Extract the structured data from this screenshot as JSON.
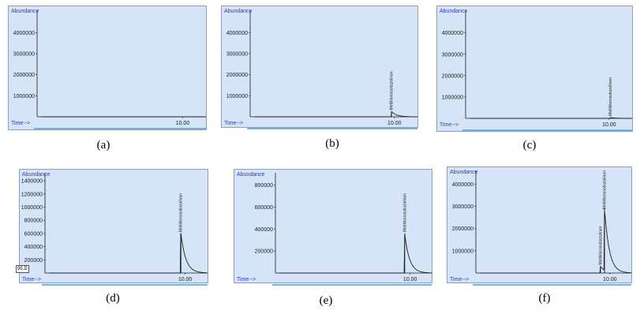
{
  "captions": [
    "(a)",
    "(b)",
    "(c)",
    "(d)",
    "(e)",
    "(f)"
  ],
  "axis": {
    "y_title": "Abundance",
    "x_title": "Time-->",
    "x_tick": "10.00"
  },
  "panel_d_side_label": "95.D",
  "peak_label": "Metilkloroisotiazolinon",
  "colors": {
    "plot_bg": "#d6e4f7",
    "trace": "#202020",
    "axis_title": "#2a3fb0",
    "scrollbar": "#6fb7e0"
  },
  "chart_data": [
    {
      "type": "line",
      "panel": "a",
      "x_axis": {
        "range": [
          0,
          11.6
        ],
        "ticks": [
          10.0
        ],
        "tick_labels": [
          "10.00"
        ]
      },
      "y_axis": {
        "range": [
          0,
          4800000
        ],
        "ticks": [
          1000000,
          2000000,
          3000000,
          4000000
        ],
        "tick_labels": [
          "1000000",
          "2000000",
          "3000000",
          "4000000"
        ]
      },
      "peaks": []
    },
    {
      "type": "line",
      "panel": "b",
      "x_axis": {
        "range": [
          0,
          11.6
        ],
        "ticks": [
          10.0
        ],
        "tick_labels": [
          "10.00"
        ]
      },
      "y_axis": {
        "range": [
          0,
          4800000
        ],
        "ticks": [
          1000000,
          2000000,
          3000000,
          4000000
        ],
        "tick_labels": [
          "1000000",
          "2000000",
          "3000000",
          "4000000"
        ]
      },
      "peaks": [
        {
          "time": 9.8,
          "abundance": 250000,
          "label": "Metilkloroisotiazolinon"
        }
      ]
    },
    {
      "type": "line",
      "panel": "c",
      "x_axis": {
        "range": [
          0,
          11.6
        ],
        "ticks": [
          10.0
        ],
        "tick_labels": [
          "10.00"
        ]
      },
      "y_axis": {
        "range": [
          0,
          4800000
        ],
        "ticks": [
          1000000,
          2000000,
          3000000,
          4000000
        ],
        "tick_labels": [
          "1000000",
          "2000000",
          "3000000",
          "4000000"
        ]
      },
      "peaks": [
        {
          "time": 10.1,
          "abundance": 40000,
          "label": "Metilkloroisotiazolinon"
        }
      ]
    },
    {
      "type": "line",
      "panel": "d",
      "x_axis": {
        "range": [
          0,
          11.6
        ],
        "ticks": [
          10.0
        ],
        "tick_labels": [
          "10.00"
        ]
      },
      "y_axis": {
        "range": [
          0,
          1450000
        ],
        "ticks": [
          200000,
          400000,
          600000,
          800000,
          1000000,
          1200000,
          1400000
        ],
        "tick_labels": [
          "200000",
          "400000",
          "600000",
          "800000",
          "1000000",
          "1200000",
          "1400000"
        ]
      },
      "peaks": [
        {
          "time": 9.7,
          "abundance": 600000,
          "label": "Metilkloroisotiazolinon"
        }
      ]
    },
    {
      "type": "line",
      "panel": "e",
      "x_axis": {
        "range": [
          0,
          11.6
        ],
        "ticks": [
          10.0
        ],
        "tick_labels": [
          "10.00"
        ]
      },
      "y_axis": {
        "range": [
          0,
          870000
        ],
        "ticks": [
          200000,
          400000,
          600000,
          800000
        ],
        "tick_labels": [
          "200000",
          "400000",
          "600000",
          "800000"
        ]
      },
      "peaks": [
        {
          "time": 9.6,
          "abundance": 360000,
          "label": "Metilkloroisotiazolinon"
        }
      ]
    },
    {
      "type": "line",
      "panel": "f",
      "x_axis": {
        "range": [
          0,
          11.6
        ],
        "ticks": [
          10.0
        ],
        "tick_labels": [
          "10.00"
        ]
      },
      "y_axis": {
        "range": [
          0,
          4400000
        ],
        "ticks": [
          1000000,
          2000000,
          3000000,
          4000000
        ],
        "tick_labels": [
          "1000000",
          "2000000",
          "3000000",
          "4000000"
        ]
      },
      "peaks": [
        {
          "time": 9.3,
          "abundance": 300000,
          "label": "Metilkloroisotiazolinon"
        },
        {
          "time": 9.6,
          "abundance": 2800000,
          "label": "Metilkloroisotiazolinon"
        }
      ]
    }
  ]
}
